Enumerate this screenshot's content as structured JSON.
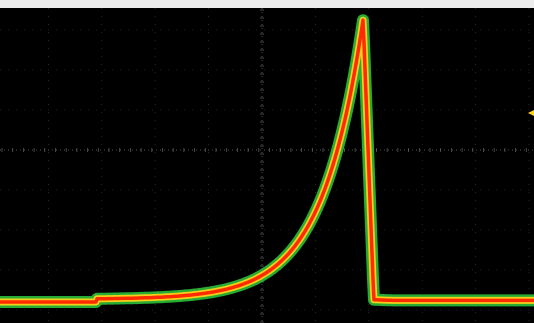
{
  "display": {
    "background_color": "#000000",
    "top_strip_color": "#ececec",
    "grid_color": "#7f7f7f",
    "trace_colors": {
      "outer": "#2bbf3a",
      "mid": "#ffd21a",
      "core": "#ff2a00"
    },
    "trigger_marker_color": "#ffd21a"
  },
  "waveform": {
    "shape": "fast-rise-exponential-peak-fast-fall",
    "baseline_level": 0.93,
    "peak_level": 0.06,
    "peak_time": 0.68,
    "fall_time": 0.7,
    "small_step_time": 0.18,
    "small_step_delta": 0.02
  }
}
